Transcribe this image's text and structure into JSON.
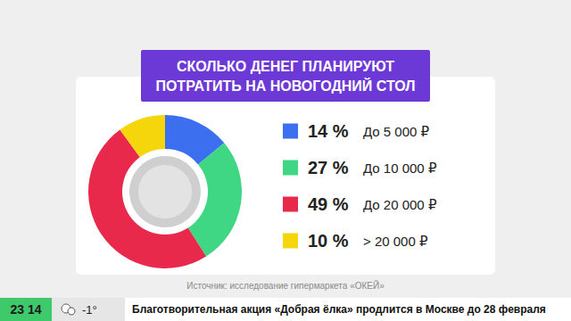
{
  "chart_data": {
    "type": "pie",
    "title": "СКОЛЬКО ДЕНЕГ ПЛАНИРУЮТ\nПОТРАТИТЬ НА НОВОГОДНИЙ СТОЛ",
    "categories": [
      "До 5 000 ₽",
      "До 10 000 ₽",
      "До 20 000 ₽",
      "> 20 000 ₽"
    ],
    "values": [
      14,
      27,
      49,
      10
    ],
    "value_labels": [
      "14 %",
      "27 %",
      "49 %",
      "10 %"
    ],
    "colors": [
      "#3b6ff0",
      "#3fd684",
      "#e8294b",
      "#f5d60c"
    ],
    "legend": "right"
  },
  "source": "Источник: исследование гипермаркета «ОКЕЙ»",
  "ticker": {
    "time": "23 14",
    "temperature": "-1°",
    "headline": "Благотворительная акция «Добрая ёлка» продлится в Москве до 28 февраля"
  }
}
